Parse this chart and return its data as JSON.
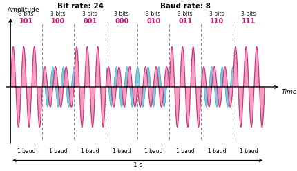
{
  "title_left": "Bit rate: 24",
  "title_right": "Baud rate: 8",
  "symbols": [
    "101",
    "100",
    "001",
    "000",
    "010",
    "011",
    "110",
    "111"
  ],
  "time_label": "Time",
  "amplitude_label": "Amplitude",
  "one_s_label": "1 s",
  "pink_stroke": "#D4347C",
  "pink_fill": "#F090B8",
  "blue_fill": "#80C8E0",
  "blue_stroke": "#40A0C0",
  "text_color_magenta": "#CC1177",
  "text_color_black": "#222222",
  "background": "#FFFFFF",
  "symbol_params": [
    {
      "amp": 1.0,
      "phase": 0,
      "freq": 3,
      "show_blue": false,
      "blue_amp": 0.0,
      "blue_phase": 0
    },
    {
      "amp": 0.5,
      "phase": 0,
      "freq": 3,
      "show_blue": true,
      "blue_amp": 0.5,
      "blue_phase": 90
    },
    {
      "amp": 1.0,
      "phase": 0,
      "freq": 3,
      "show_blue": false,
      "blue_amp": 0.0,
      "blue_phase": 0
    },
    {
      "amp": 0.5,
      "phase": 0,
      "freq": 3,
      "show_blue": true,
      "blue_amp": 0.5,
      "blue_phase": 90
    },
    {
      "amp": 0.5,
      "phase": 180,
      "freq": 3,
      "show_blue": true,
      "blue_amp": 0.5,
      "blue_phase": 90
    },
    {
      "amp": 1.0,
      "phase": 0,
      "freq": 3,
      "show_blue": false,
      "blue_amp": 0.0,
      "blue_phase": 0
    },
    {
      "amp": 0.5,
      "phase": 0,
      "freq": 3,
      "show_blue": true,
      "blue_amp": 0.5,
      "blue_phase": 90
    },
    {
      "amp": 1.0,
      "phase": 0,
      "freq": 3,
      "show_blue": false,
      "blue_amp": 0.0,
      "blue_phase": 0
    }
  ]
}
